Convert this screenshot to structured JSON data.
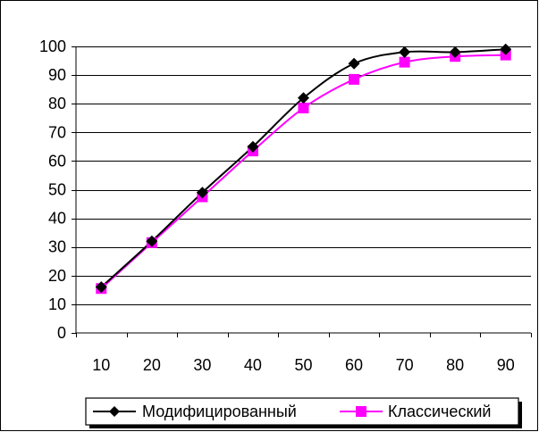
{
  "chart_data": {
    "type": "line",
    "title": "",
    "xlabel": "",
    "ylabel": "",
    "x": [
      10,
      20,
      30,
      40,
      50,
      60,
      70,
      80,
      90
    ],
    "x_tick_labels": [
      "10",
      "20",
      "30",
      "40",
      "50",
      "60",
      "70",
      "80",
      "90"
    ],
    "ylim": [
      0,
      100
    ],
    "y_ticks": [
      0,
      10,
      20,
      30,
      40,
      50,
      60,
      70,
      80,
      90,
      100
    ],
    "y_tick_labels": [
      "0",
      "10",
      "20",
      "30",
      "40",
      "50",
      "60",
      "70",
      "80",
      "90",
      "100"
    ],
    "grid": true,
    "legend_placement": "bottom-right",
    "series": [
      {
        "name": "Модифицированный",
        "marker": "diamond",
        "color": "#000000",
        "values": [
          16,
          32,
          49,
          65,
          82,
          94,
          98,
          98,
          99
        ]
      },
      {
        "name": "Классический",
        "marker": "square",
        "color": "#ff00ff",
        "values": [
          15.5,
          31.5,
          47.5,
          63.5,
          78.5,
          88.5,
          94.5,
          96.5,
          97
        ]
      }
    ]
  }
}
